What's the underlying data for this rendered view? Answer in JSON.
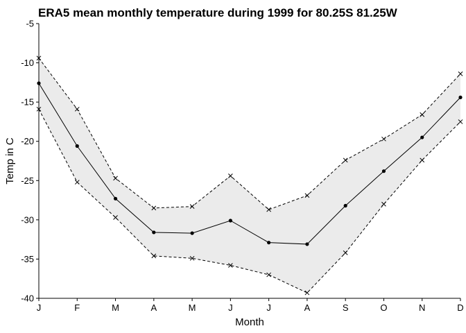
{
  "chart_data": {
    "type": "line",
    "title": "ERA5 mean monthly temperature during 1999 for 80.25S 81.25W",
    "xlabel": "Month",
    "ylabel": "Temp in C",
    "categories": [
      "J",
      "F",
      "M",
      "A",
      "M",
      "J",
      "J",
      "A",
      "S",
      "O",
      "N",
      "D"
    ],
    "ylim": [
      -40,
      -5
    ],
    "yticks": [
      -40,
      -35,
      -30,
      -25,
      -20,
      -15,
      -10,
      -5
    ],
    "grid": false,
    "legend": "none",
    "series": [
      {
        "role": "mean",
        "style": "solid line with dot markers",
        "values": [
          -12.6,
          -20.6,
          -27.3,
          -31.6,
          -31.7,
          -30.1,
          -32.9,
          -33.1,
          -28.2,
          -23.8,
          -19.5,
          -14.4
        ]
      },
      {
        "role": "max",
        "style": "dashed line with x markers",
        "values": [
          -9.4,
          -15.9,
          -24.7,
          -28.5,
          -28.3,
          -24.4,
          -28.7,
          -26.9,
          -22.4,
          -19.7,
          -16.6,
          -11.4
        ]
      },
      {
        "role": "min",
        "style": "dashed line with x markers",
        "values": [
          -15.9,
          -25.2,
          -29.7,
          -34.6,
          -34.9,
          -35.8,
          -37.0,
          -39.3,
          -34.2,
          -28.0,
          -22.4,
          -17.5
        ]
      }
    ],
    "colors": {
      "band": "#ebebeb",
      "line": "#000000"
    }
  }
}
